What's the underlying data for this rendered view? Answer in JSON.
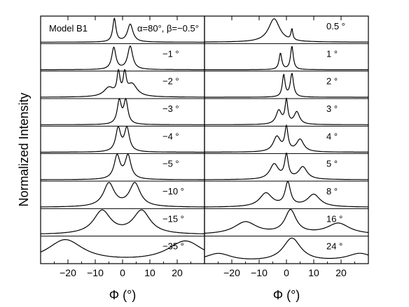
{
  "chart_data": [
    {
      "type": "line",
      "title": "Model B1",
      "top_label": "α=80°, β=−0.5°",
      "xlabel": "Φ (°)",
      "ylabel": "Normalized Intensity",
      "xlim": [
        -30,
        30
      ],
      "xticks": [
        -20,
        -10,
        0,
        10,
        20
      ],
      "xticklabels": [
        "−20",
        "−10",
        "0",
        "10",
        "20"
      ],
      "series": [
        {
          "name": "−0.5°",
          "label": "",
          "y_base": 0.0,
          "peaks": [
            {
              "x": -3,
              "w": 0.7,
              "h": 0.85
            },
            {
              "x": 2.8,
              "w": 1.2,
              "h": 0.65
            }
          ]
        },
        {
          "name": "−1°",
          "label": "−1 °",
          "y_base": 0.0,
          "peaks": [
            {
              "x": -3.2,
              "w": 0.9,
              "h": 0.8
            },
            {
              "x": 2.8,
              "w": 1.1,
              "h": 0.85
            }
          ]
        },
        {
          "name": "−2°",
          "label": "−2 °",
          "y_base": 0.0,
          "peaks": [
            {
              "x": -5,
              "w": 2.2,
              "h": 0.32
            },
            {
              "x": -1.5,
              "w": 0.6,
              "h": 0.85
            },
            {
              "x": 0.8,
              "w": 0.6,
              "h": 0.8
            },
            {
              "x": 3.5,
              "w": 2.2,
              "h": 0.45
            }
          ]
        },
        {
          "name": "−3°",
          "label": "−3 °",
          "y_base": 0.0,
          "peaks": [
            {
              "x": -1.2,
              "w": 0.9,
              "h": 0.85
            },
            {
              "x": 1.2,
              "w": 0.9,
              "h": 0.85
            }
          ]
        },
        {
          "name": "−4°",
          "label": "−4 °",
          "y_base": 0.0,
          "peaks": [
            {
              "x": -1.6,
              "w": 1.1,
              "h": 0.85
            },
            {
              "x": 1.6,
              "w": 1.1,
              "h": 0.85
            }
          ]
        },
        {
          "name": "−5°",
          "label": "−5 °",
          "y_base": 0.0,
          "peaks": [
            {
              "x": -2.0,
              "w": 1.3,
              "h": 0.85
            },
            {
              "x": 2.0,
              "w": 1.3,
              "h": 0.85
            }
          ]
        },
        {
          "name": "−10°",
          "label": "−10 °",
          "y_base": 0.0,
          "peaks": [
            {
              "x": -5.0,
              "w": 2.4,
              "h": 0.85
            },
            {
              "x": 4.5,
              "w": 2.4,
              "h": 0.85
            }
          ]
        },
        {
          "name": "−15°",
          "label": "−15 °",
          "y_base": 0.0,
          "peaks": [
            {
              "x": -7.5,
              "w": 3.8,
              "h": 0.85
            },
            {
              "x": 7.0,
              "w": 3.8,
              "h": 0.85
            }
          ]
        },
        {
          "name": "−35°",
          "label": "−35 °",
          "y_base": 0.0,
          "peaks": [
            {
              "x": -21,
              "w": 8,
              "h": 0.8
            },
            {
              "x": 23,
              "w": 8,
              "h": 0.75
            }
          ]
        }
      ]
    },
    {
      "type": "line",
      "xlabel": "Φ (°)",
      "xlim": [
        -30,
        30
      ],
      "xticks": [
        -20,
        -10,
        0,
        10,
        20
      ],
      "xticklabels": [
        "−20",
        "−10",
        "0",
        "10",
        "20"
      ],
      "series": [
        {
          "name": "0.5°",
          "label": "0.5 °",
          "y_base": 0.0,
          "peaks": [
            {
              "x": -4.5,
              "w": 2.5,
              "h": 0.85
            },
            {
              "x": 2,
              "w": 0.4,
              "h": 0.4
            }
          ]
        },
        {
          "name": "1°",
          "label": "1 °",
          "y_base": 0.0,
          "peaks": [
            {
              "x": -2.2,
              "w": 0.6,
              "h": 0.6
            },
            {
              "x": 2.0,
              "w": 0.6,
              "h": 0.85
            }
          ]
        },
        {
          "name": "2°",
          "label": "2 °",
          "y_base": 0.0,
          "peaks": [
            {
              "x": -1.0,
              "w": 0.6,
              "h": 0.8
            },
            {
              "x": 2.0,
              "w": 0.7,
              "h": 0.85
            }
          ]
        },
        {
          "name": "3°",
          "label": "3 °",
          "y_base": 0.0,
          "peaks": [
            {
              "x": -2.8,
              "w": 1.2,
              "h": 0.5
            },
            {
              "x": 0.0,
              "w": 0.6,
              "h": 0.85
            },
            {
              "x": 3.8,
              "w": 1.2,
              "h": 0.45
            }
          ]
        },
        {
          "name": "4°",
          "label": "4 °",
          "y_base": 0.0,
          "peaks": [
            {
              "x": -3.5,
              "w": 1.6,
              "h": 0.55
            },
            {
              "x": 0.0,
              "w": 0.7,
              "h": 0.85
            },
            {
              "x": 5.0,
              "w": 1.6,
              "h": 0.45
            }
          ]
        },
        {
          "name": "5°",
          "label": "5 °",
          "y_base": 0.0,
          "peaks": [
            {
              "x": -4.5,
              "w": 1.9,
              "h": 0.55
            },
            {
              "x": 0.0,
              "w": 0.8,
              "h": 0.85
            },
            {
              "x": 6.0,
              "w": 1.9,
              "h": 0.45
            }
          ]
        },
        {
          "name": "8°",
          "label": "8 °",
          "y_base": 0.0,
          "peaks": [
            {
              "x": -7.5,
              "w": 2.8,
              "h": 0.5
            },
            {
              "x": 0.5,
              "w": 1.2,
              "h": 0.85
            },
            {
              "x": 10.0,
              "w": 2.8,
              "h": 0.45
            }
          ]
        },
        {
          "name": "16°",
          "label": "16 °",
          "y_base": 0.0,
          "peaks": [
            {
              "x": -15,
              "w": 5,
              "h": 0.45
            },
            {
              "x": 1.5,
              "w": 2.5,
              "h": 0.85
            },
            {
              "x": 19,
              "w": 5,
              "h": 0.4
            }
          ]
        },
        {
          "name": "24°",
          "label": "24 °",
          "y_base": 0.0,
          "peaks": [
            {
              "x": -25,
              "w": 6,
              "h": 0.3
            },
            {
              "x": 2.0,
              "w": 4.0,
              "h": 0.85
            },
            {
              "x": 27,
              "w": 6,
              "h": 0.3
            }
          ]
        }
      ]
    }
  ],
  "ticks_minor": [
    -30,
    -25,
    -15,
    -5,
    5,
    15,
    25,
    30
  ]
}
